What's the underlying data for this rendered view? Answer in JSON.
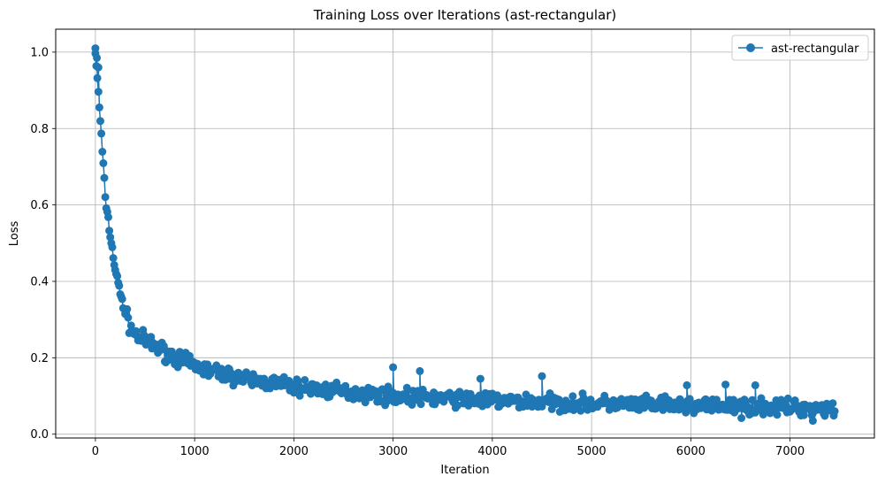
{
  "chart_data": {
    "type": "line",
    "title": "Training Loss over Iterations (ast-rectangular)",
    "xlabel": "Iteration",
    "ylabel": "Loss",
    "xlim": [
      -400,
      7850
    ],
    "ylim": [
      -0.01,
      1.06
    ],
    "xticks": [
      0,
      1000,
      2000,
      3000,
      4000,
      5000,
      6000,
      7000
    ],
    "yticks": [
      0.0,
      0.2,
      0.4,
      0.6,
      0.8,
      1.0
    ],
    "grid": true,
    "legend_position": "top-right",
    "series": [
      {
        "name": "ast-rectangular",
        "color": "#1f77b4",
        "marker": "circle",
        "x_range": [
          0,
          7450
        ],
        "step": 10,
        "trend": [
          [
            0,
            1.0
          ],
          [
            50,
            0.82
          ],
          [
            100,
            0.62
          ],
          [
            150,
            0.52
          ],
          [
            200,
            0.43
          ],
          [
            250,
            0.37
          ],
          [
            300,
            0.32
          ],
          [
            350,
            0.28
          ],
          [
            400,
            0.26
          ],
          [
            500,
            0.245
          ],
          [
            700,
            0.215
          ],
          [
            900,
            0.19
          ],
          [
            1100,
            0.17
          ],
          [
            1500,
            0.145
          ],
          [
            2000,
            0.125
          ],
          [
            2500,
            0.11
          ],
          [
            3000,
            0.1
          ],
          [
            4000,
            0.088
          ],
          [
            5000,
            0.08
          ],
          [
            6000,
            0.074
          ],
          [
            7000,
            0.07
          ],
          [
            7450,
            0.068
          ]
        ],
        "noise_amplitude": 0.03,
        "outliers": [
          [
            0,
            1.01
          ],
          [
            15,
            0.985
          ],
          [
            30,
            0.96
          ],
          [
            3000,
            0.175
          ],
          [
            3270,
            0.165
          ],
          [
            4500,
            0.152
          ],
          [
            3880,
            0.145
          ],
          [
            6350,
            0.13
          ],
          [
            6650,
            0.128
          ],
          [
            5960,
            0.128
          ],
          [
            7230,
            0.035
          ],
          [
            6510,
            0.042
          ]
        ]
      }
    ]
  }
}
